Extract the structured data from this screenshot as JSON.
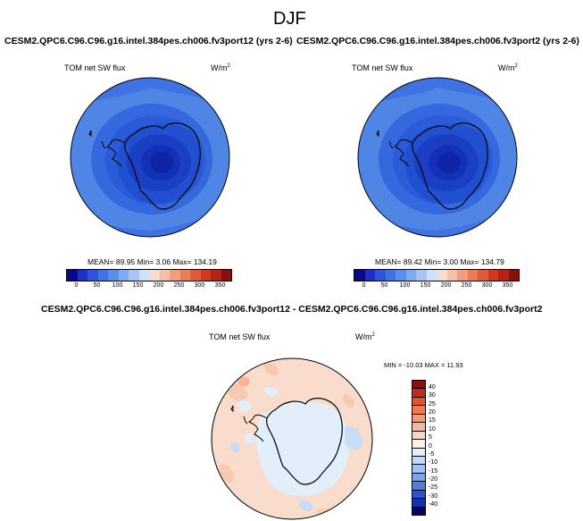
{
  "figure": {
    "title": "DJF",
    "panel1": {
      "case": "CESM2.QPC6.C96.C96.g16.intel.384pes.ch006.fv3port12 (yrs 2-6)",
      "variable": "TOM net SW flux",
      "units_base": "W/m",
      "units_exp": "2",
      "stats": "MEAN=  89.95  Min=   3.06  Max= 134.19"
    },
    "panel2": {
      "case": "CESM2.QPC6.C96.C96.g16.intel.384pes.ch006.fv3port2 (yrs 2-6)",
      "variable": "TOM net SW flux",
      "units_base": "W/m",
      "units_exp": "2",
      "stats": "MEAN=  89.42  Min=   3.00  Max= 134.79"
    },
    "diff": {
      "case": "CESM2.QPC6.C96.C96.g16.intel.384pes.ch006.fv3port12 - CESM2.QPC6.C96.C96.g16.intel.384pes.ch006.fv3port2",
      "variable": "TOM net SW flux",
      "units_base": "W/m",
      "units_exp": "2",
      "stats": "MIN = -10.03 MAX =  11.93"
    },
    "colorbar_abs": {
      "ticks": [
        "0",
        "50",
        "100",
        "150",
        "200",
        "250",
        "300",
        "350"
      ],
      "colors": [
        "#08088a",
        "#1f30c8",
        "#2f55d8",
        "#3f72e3",
        "#5a8fe8",
        "#7eaaf0",
        "#a6c4f5",
        "#cfe0fa",
        "#f8dccd",
        "#f5c0a8",
        "#f0a080",
        "#ea7c57",
        "#e05a38",
        "#cf3a20",
        "#b62314",
        "#8a0e0a"
      ]
    },
    "colorbar_diff": {
      "ticks": [
        "40",
        "30",
        "25",
        "20",
        "15",
        "10",
        "5",
        "0",
        "-5",
        "-10",
        "-15",
        "-20",
        "-25",
        "-30",
        "-40"
      ],
      "colors": [
        "#8a0e0a",
        "#c32a1a",
        "#e05433",
        "#ef7a52",
        "#f39a75",
        "#f6b89b",
        "#f9d7c2",
        "#fdf0e6",
        "#e2eefb",
        "#c4daf5",
        "#a0c2ef",
        "#7ca6e8",
        "#4f80dc",
        "#2a55cc",
        "#1530a8",
        "#06065f"
      ]
    }
  }
}
